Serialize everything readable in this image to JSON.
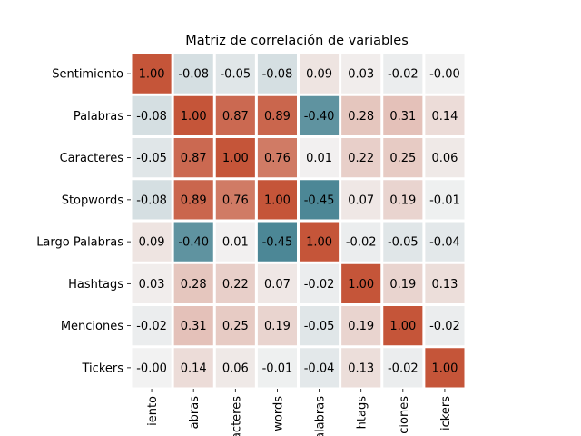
{
  "chart_data": {
    "type": "heatmap",
    "title": "Matriz de correlación de variables",
    "row_labels": [
      "Sentimiento",
      "Palabras",
      "Caracteres",
      "Stopwords",
      "Largo Palabras",
      "Hashtags",
      "Menciones",
      "Tickers"
    ],
    "col_labels_visible": [
      "iento",
      "abras",
      "acteres",
      "words",
      "alabras",
      "htags",
      "ciones",
      "ickers"
    ],
    "values": [
      [
        1.0,
        -0.08,
        -0.05,
        -0.08,
        0.09,
        0.03,
        -0.02,
        -0.0
      ],
      [
        -0.08,
        1.0,
        0.87,
        0.89,
        -0.4,
        0.28,
        0.31,
        0.14
      ],
      [
        -0.05,
        0.87,
        1.0,
        0.76,
        0.01,
        0.22,
        0.25,
        0.06
      ],
      [
        -0.08,
        0.89,
        0.76,
        1.0,
        -0.45,
        0.07,
        0.19,
        -0.01
      ],
      [
        0.09,
        -0.4,
        0.01,
        -0.45,
        1.0,
        -0.02,
        -0.05,
        -0.04
      ],
      [
        0.03,
        0.28,
        0.22,
        0.07,
        -0.02,
        1.0,
        0.19,
        0.13
      ],
      [
        -0.02,
        0.31,
        0.25,
        0.19,
        -0.05,
        0.19,
        1.0,
        -0.02
      ],
      [
        -0.0,
        0.14,
        0.06,
        -0.01,
        -0.04,
        0.13,
        -0.02,
        1.0
      ]
    ],
    "cell_text": [
      [
        "1.00",
        "-0.08",
        "-0.05",
        "-0.08",
        "0.09",
        "0.03",
        "-0.02",
        "-0.00"
      ],
      [
        "-0.08",
        "1.00",
        "0.87",
        "0.89",
        "-0.40",
        "0.28",
        "0.31",
        "0.14"
      ],
      [
        "-0.05",
        "0.87",
        "1.00",
        "0.76",
        "0.01",
        "0.22",
        "0.25",
        "0.06"
      ],
      [
        "-0.08",
        "0.89",
        "0.76",
        "1.00",
        "-0.45",
        "0.07",
        "0.19",
        "-0.01"
      ],
      [
        "0.09",
        "-0.40",
        "0.01",
        "-0.45",
        "1.00",
        "-0.02",
        "-0.05",
        "-0.04"
      ],
      [
        "0.03",
        "0.28",
        "0.22",
        "0.07",
        "-0.02",
        "1.00",
        "0.19",
        "0.13"
      ],
      [
        "-0.02",
        "0.31",
        "0.25",
        "0.19",
        "-0.05",
        "0.19",
        "1.00",
        "-0.02"
      ],
      [
        "-0.00",
        "0.14",
        "0.06",
        "-0.01",
        "-0.04",
        "0.13",
        "-0.02",
        "1.00"
      ]
    ],
    "vlim": [
      -0.5,
      1.0
    ],
    "colormap": {
      "negative": "#3a7b8c",
      "center": "#f2f2f2",
      "positive": "#c55539"
    },
    "grid": true,
    "legend": "none"
  }
}
